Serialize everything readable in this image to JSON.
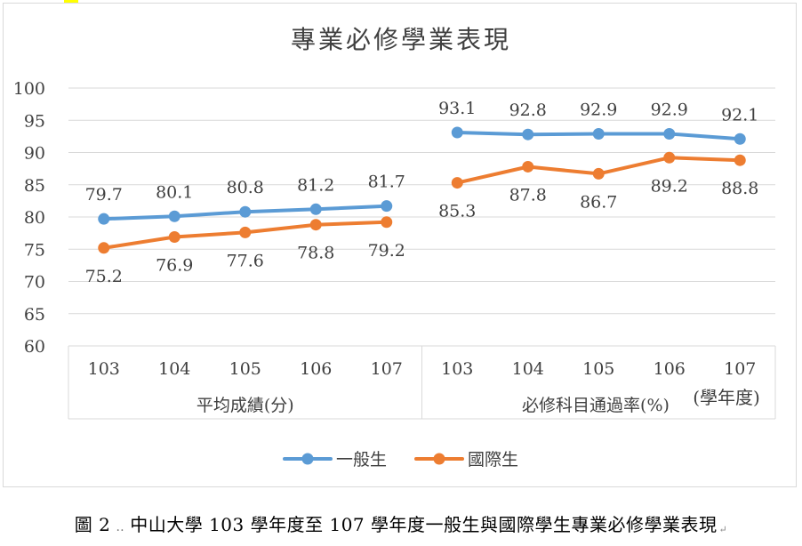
{
  "chart_data": {
    "type": "line",
    "title": "專業必修學業表現",
    "ylim": [
      60,
      100
    ],
    "yticks": [
      60,
      65,
      70,
      75,
      80,
      85,
      90,
      95,
      100
    ],
    "grid": true,
    "legend_position": "bottom",
    "group_labels": [
      "平均成績(分)",
      "必修科目通過率(%)"
    ],
    "axis_unit_label": "(學年度)",
    "categories": [
      "103",
      "104",
      "105",
      "106",
      "107",
      "103",
      "104",
      "105",
      "106",
      "107"
    ],
    "series": [
      {
        "name": "一般生",
        "color": "#5b9bd5",
        "values": [
          79.7,
          80.1,
          80.8,
          81.2,
          81.7,
          93.1,
          92.8,
          92.9,
          92.9,
          92.1
        ]
      },
      {
        "name": "國際生",
        "color": "#ed7d31",
        "values": [
          75.2,
          76.9,
          77.6,
          78.8,
          79.2,
          85.3,
          87.8,
          86.7,
          89.2,
          88.8
        ]
      }
    ]
  },
  "caption": {
    "figure_no": "圖 2",
    "dots": "‥",
    "text": "中山大學 103 學年度至 107 學年度一般生與國際學生專業必修學業表現"
  }
}
